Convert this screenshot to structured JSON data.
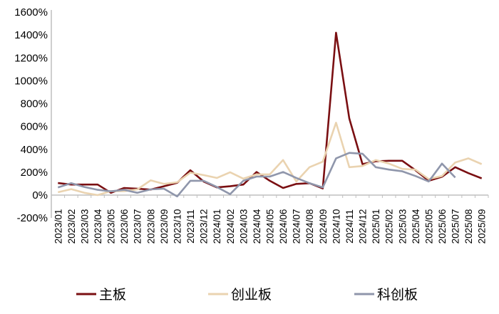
{
  "chart_data": {
    "type": "line",
    "title": "",
    "xlabel": "",
    "ylabel": "",
    "ylim": [
      -200,
      1600
    ],
    "y_ticks": [
      "-200%",
      "0%",
      "200%",
      "400%",
      "600%",
      "800%",
      "1000%",
      "1200%",
      "1400%",
      "1600%"
    ],
    "y_tick_values": [
      -200,
      0,
      200,
      400,
      600,
      800,
      1000,
      1200,
      1400,
      1600
    ],
    "grid": false,
    "legend_position": "bottom",
    "categories": [
      "2023/01",
      "2023/02",
      "2023/03",
      "2023/04",
      "2023/05",
      "2023/06",
      "2023/07",
      "2023/08",
      "2023/09",
      "2023/10",
      "2023/11",
      "2023/12",
      "2024/01",
      "2024/02",
      "2024/03",
      "2024/04",
      "2024/05",
      "2024/06",
      "2024/07",
      "2024/08",
      "2024/09",
      "2024/10",
      "2024/11",
      "2024/12",
      "2025/01",
      "2025/02",
      "2025/03",
      "2025/04",
      "2025/05",
      "2025/06",
      "2025/07",
      "2025/08",
      "2025/09"
    ],
    "series": [
      {
        "name": "主板",
        "color": "#7a0f12",
        "values": [
          105,
          92,
          92,
          92,
          20,
          62,
          56,
          48,
          77,
          108,
          217,
          119,
          67,
          77,
          92,
          202,
          125,
          62,
          98,
          104,
          58,
          1420,
          670,
          271,
          296,
          300,
          300,
          217,
          125,
          160,
          244,
          192,
          146
        ]
      },
      {
        "name": "创业板",
        "color": "#ead3b0",
        "values": [
          25,
          52,
          20,
          0,
          35,
          35,
          50,
          129,
          98,
          112,
          196,
          175,
          150,
          200,
          144,
          181,
          181,
          306,
          119,
          244,
          292,
          633,
          244,
          254,
          306,
          275,
          229,
          223,
          140,
          167,
          285,
          321,
          271
        ]
      },
      {
        "name": "科创板",
        "color": "#8f96ab",
        "values": [
          67,
          104,
          71,
          46,
          33,
          46,
          20,
          50,
          56,
          -12,
          125,
          125,
          71,
          8,
          125,
          162,
          162,
          202,
          150,
          104,
          67,
          321,
          369,
          362,
          244,
          223,
          208,
          167,
          119,
          275,
          154,
          null,
          null
        ]
      }
    ]
  }
}
